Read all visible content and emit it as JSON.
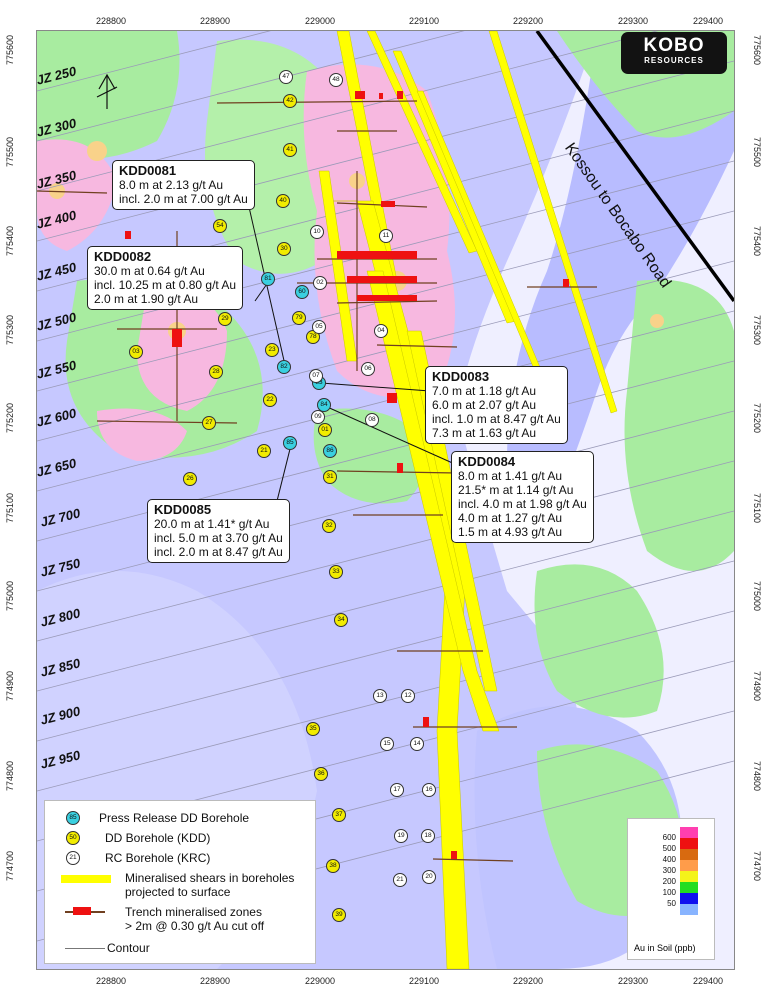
{
  "map": {
    "top_ticks": [
      "228800",
      "228900",
      "229000",
      "229100",
      "229200",
      "229300",
      "229400"
    ],
    "bottom_ticks": [
      "228800",
      "228900",
      "229000",
      "229100",
      "229200",
      "229300",
      "229400"
    ],
    "left_ticks": [
      "775600",
      "775500",
      "775400",
      "775300",
      "775200",
      "775100",
      "775000",
      "774900",
      "774800",
      "774700"
    ],
    "right_ticks": [
      "775600",
      "775500",
      "775400",
      "775300",
      "775200",
      "775100",
      "775000",
      "774900",
      "774800",
      "774700"
    ],
    "road_label": "Kossou to Bocabo Road",
    "logo": {
      "line1": "KOBO",
      "line2": "RESOURCES"
    },
    "jz_labels": [
      "JZ 250",
      "JZ 300",
      "JZ 350",
      "JZ 400",
      "JZ 450",
      "JZ 500",
      "JZ 550",
      "JZ 600",
      "JZ 650",
      "JZ 700",
      "JZ 750",
      "JZ 800",
      "JZ 850",
      "JZ 900",
      "JZ 950"
    ]
  },
  "callouts": {
    "kdd0081": {
      "title": "KDD0081",
      "lines": [
        "8.0 m at 2.13 g/t Au",
        "incl. 2.0 m at 7.00 g/t Au"
      ]
    },
    "kdd0082": {
      "title": "KDD0082",
      "lines": [
        "30.0 m at 0.64 g/t Au",
        "incl. 10.25 m at 0.80 g/t Au",
        "2.0 m at 1.90 g/t Au"
      ]
    },
    "kdd0083": {
      "title": "KDD0083",
      "lines": [
        "7.0 m at 1.18 g/t Au",
        "6.0 m at 2.07 g/t Au",
        "incl. 1.0 m at 8.47 g/t Au",
        "7.3 m at 1.63 g/t Au"
      ]
    },
    "kdd0084": {
      "title": "KDD0084",
      "lines": [
        "8.0 m at 1.41 g/t Au",
        "21.5* m at 1.14 g/t Au",
        "incl. 4.0 m at 1.98 g/t Au",
        "4.0 m at 1.27 g/t Au",
        "1.5 m at 4.93 g/t Au"
      ]
    },
    "kdd0085": {
      "title": "KDD0085",
      "lines": [
        "20.0 m at 1.41* g/t Au",
        "incl. 5.0 m at 3.70 g/t Au",
        "incl. 2.0 m at 8.47 g/t Au"
      ]
    }
  },
  "boreholes": {
    "press_release": [
      "81",
      "82",
      "83",
      "84",
      "85",
      "86",
      "60"
    ],
    "dd": [
      "42",
      "41",
      "40",
      "54",
      "30",
      "29",
      "23",
      "28",
      "22",
      "27",
      "26",
      "21",
      "31",
      "32",
      "33",
      "34",
      "35",
      "36",
      "37",
      "38",
      "39",
      "03",
      "79",
      "78",
      "01"
    ],
    "rc": [
      "47",
      "48",
      "10",
      "11",
      "02",
      "05",
      "04",
      "06",
      "07",
      "09",
      "08",
      "13",
      "12",
      "15",
      "14",
      "17",
      "16",
      "19",
      "18",
      "21",
      "20"
    ]
  },
  "legend": {
    "items": [
      {
        "symbol": "85",
        "label": "Press Release DD Borehole"
      },
      {
        "symbol": "50",
        "label": "DD Borehole (KDD)"
      },
      {
        "symbol": "21",
        "label": "RC Borehole (KRC)"
      },
      {
        "symbol": "",
        "label": "Mineralised shears in boreholes"
      },
      {
        "symbol": "",
        "label": "projected to surface"
      },
      {
        "symbol": "",
        "label": "Trench mineralised zones"
      },
      {
        "symbol": "",
        "label": "> 2m @ 0.30 g/t Au cut off"
      },
      {
        "symbol": "",
        "label": "Contour"
      }
    ]
  },
  "soil_scale": {
    "title": "Au in Soil (ppb)",
    "labels": [
      "600",
      "500",
      "400",
      "300",
      "200",
      "100",
      "50"
    ],
    "colors": [
      "#ff3fb0",
      "#ee1111",
      "#d86a10",
      "#ff9c4a",
      "#f4f41a",
      "#22dd22",
      "#1010ee",
      "#88b4ff"
    ]
  },
  "colors": {
    "frame_bg": "#efefff",
    "lavender": "#b4b8ff",
    "green": "#a8f0a0",
    "pink": "#f7b8e0",
    "shear_yellow": "#ffff00",
    "trench_red": "#ee1111"
  }
}
